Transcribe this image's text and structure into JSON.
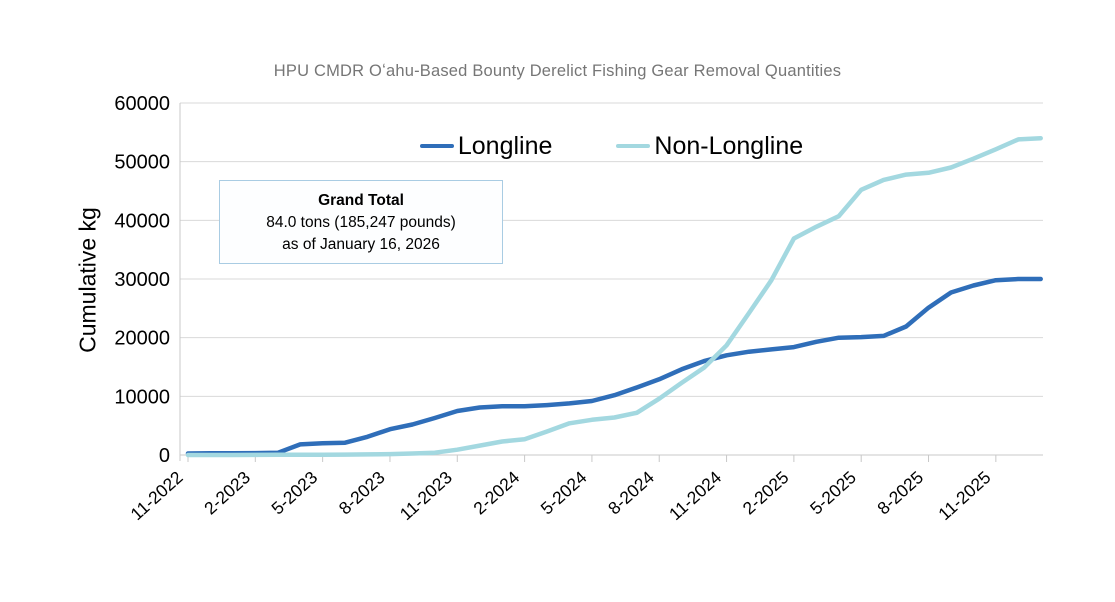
{
  "title": "HPU CMDR Oʻahu-Based Bounty Derelict Fishing Gear Removal Quantities",
  "annotation_box": {
    "title": "Grand Total",
    "line1": "84.0 tons (185,247 pounds)",
    "line2": "as of January 16, 2026"
  },
  "colors": {
    "longline": "#2f6eb9",
    "non_longline": "#a3d8e0",
    "gridline": "#d9d9d9",
    "axis": "#c8c8c8",
    "title_text": "#767676",
    "annotation_border": "#a9cce3"
  },
  "chart_data": {
    "type": "line",
    "title": "HPU CMDR Oʻahu-Based Bounty Derelict Fishing Gear Removal Quantities",
    "xlabel": "",
    "ylabel": "Cumulative kg",
    "ylim": [
      0,
      60000
    ],
    "ytick_interval": 10000,
    "ytick_labels": [
      "0",
      "10000",
      "20000",
      "30000",
      "40000",
      "50000",
      "60000"
    ],
    "grid": "horizontal",
    "legend_position": "top-center",
    "xtick_every": 3,
    "x": [
      "11-2022",
      "12-2022",
      "1-2023",
      "2-2023",
      "3-2023",
      "4-2023",
      "5-2023",
      "6-2023",
      "7-2023",
      "8-2023",
      "9-2023",
      "10-2023",
      "11-2023",
      "12-2023",
      "1-2024",
      "2-2024",
      "3-2024",
      "4-2024",
      "5-2024",
      "6-2024",
      "7-2024",
      "8-2024",
      "9-2024",
      "10-2024",
      "11-2024",
      "12-2024",
      "1-2025",
      "2-2025",
      "3-2025",
      "4-2025",
      "5-2025",
      "6-2025",
      "7-2025",
      "8-2025",
      "9-2025",
      "10-2025",
      "11-2025",
      "12-2025",
      "1-2026"
    ],
    "xtick_labels_shown": [
      "11-2022",
      "2-2023",
      "5-2023",
      "8-2023",
      "11-2023",
      "2-2024",
      "5-2024",
      "8-2024",
      "11-2024",
      "2-2025",
      "5-2025",
      "8-2025",
      "11-2025"
    ],
    "series": [
      {
        "name": "Longline",
        "color": "#2f6eb9",
        "values": [
          250,
          300,
          300,
          320,
          380,
          1800,
          2000,
          2100,
          3100,
          4400,
          5200,
          6300,
          7500,
          8100,
          8300,
          8300,
          8500,
          8800,
          9200,
          10200,
          11500,
          12900,
          14600,
          16000,
          17000,
          17600,
          18000,
          18400,
          19300,
          20000,
          20100,
          20300,
          21900,
          25100,
          27700,
          28900,
          29800,
          30000,
          30000
        ]
      },
      {
        "name": "Non-Longline",
        "color": "#a3d8e0",
        "values": [
          0,
          0,
          0,
          20,
          30,
          50,
          50,
          60,
          100,
          150,
          250,
          400,
          900,
          1600,
          2300,
          2700,
          4000,
          5400,
          6000,
          6400,
          7200,
          9600,
          12300,
          14900,
          18700,
          24200,
          29800,
          36900,
          38900,
          40700,
          45200,
          46900,
          47800,
          48100,
          49000,
          50500,
          52100,
          53800,
          54000
        ]
      }
    ]
  }
}
